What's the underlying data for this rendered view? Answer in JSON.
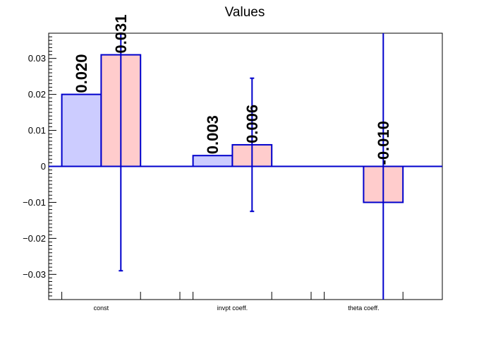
{
  "chart_data": {
    "type": "bar",
    "title": "Values",
    "xlabel": "",
    "ylabel": "",
    "categories": [
      "const",
      "invpt coeff.",
      "theta coeff."
    ],
    "ylim": [
      -0.037,
      0.037
    ],
    "yticks": [
      -0.03,
      -0.02,
      -0.01,
      0,
      0.01,
      0.02,
      0.03
    ],
    "ytick_labels": [
      "−0.03",
      "−0.02",
      "−0.01",
      "0",
      "0.01",
      "0.02",
      "0.03"
    ],
    "grid": false,
    "series": [
      {
        "fill": "#ccccff",
        "values": [
          0.02,
          0.003,
          null
        ],
        "labels": [
          "0.020",
          "0.003",
          ""
        ],
        "errors": [
          null,
          null,
          null
        ]
      },
      {
        "fill": "#ffcccc",
        "values": [
          0.031,
          0.006,
          -0.01
        ],
        "labels": [
          "0.031",
          "0.006",
          "-0.010"
        ],
        "errors": [
          0.06,
          0.0185,
          0.06
        ]
      }
    ],
    "colors": {
      "bar_edge": "#0000cc",
      "error_bar": "#0000cc",
      "axis": "#000000"
    }
  }
}
